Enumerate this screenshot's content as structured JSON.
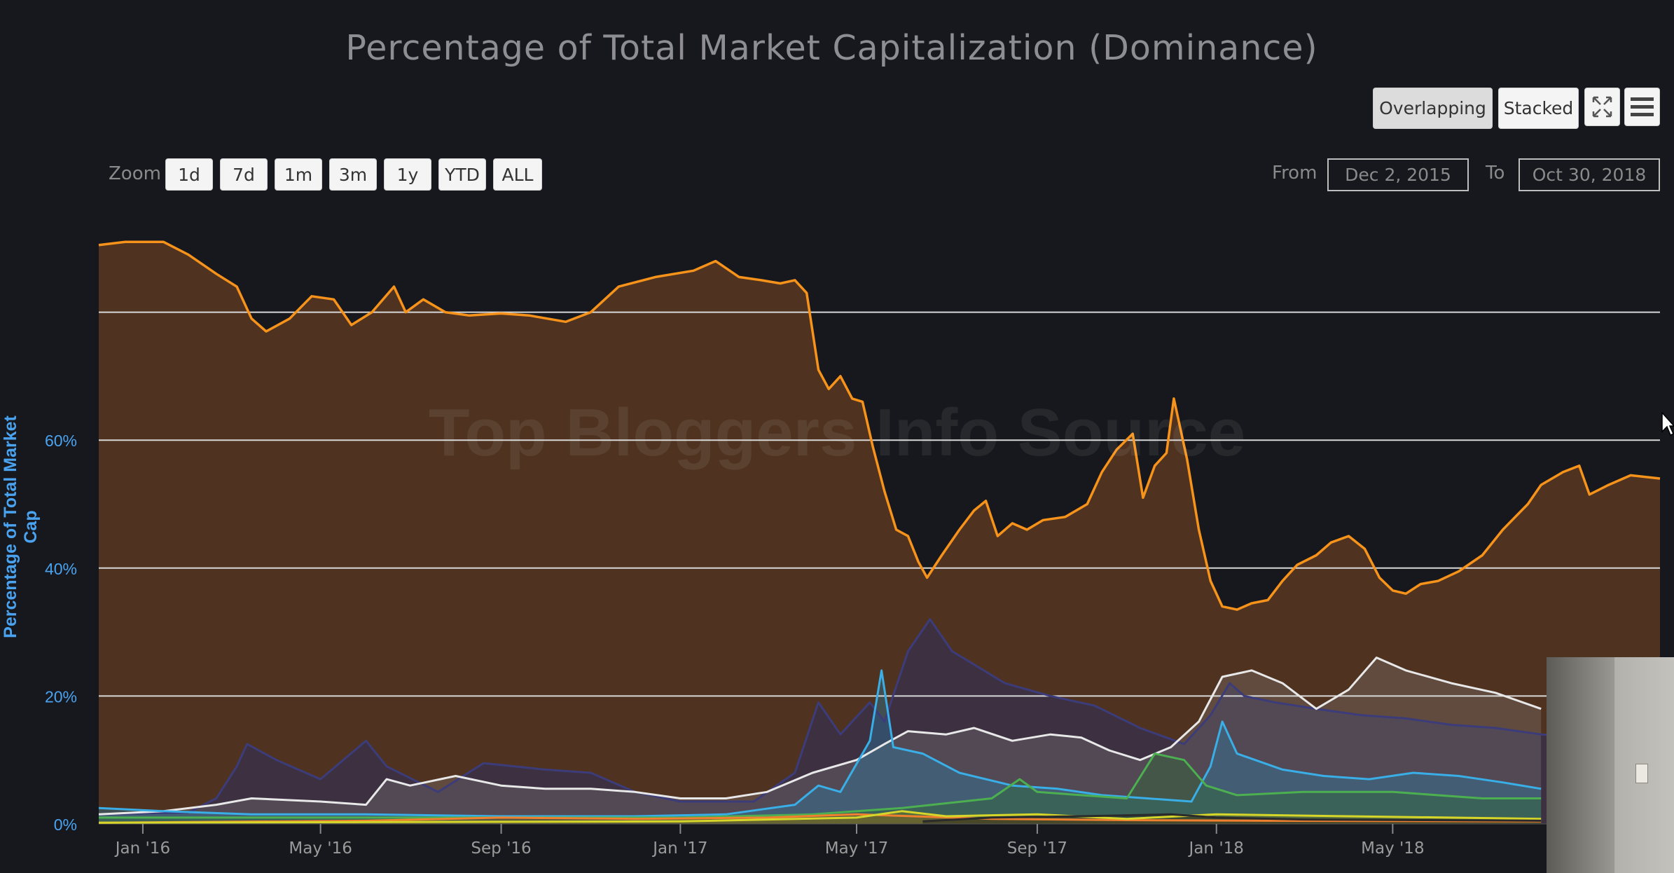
{
  "title": "Percentage of Total Market Capitalization (Dominance)",
  "view_toggle": {
    "overlapping_label": "Overlapping",
    "stacked_label": "Stacked",
    "selected": "Overlapping"
  },
  "toolbar_icons": [
    "fullscreen-icon",
    "menu-icon"
  ],
  "zoom": {
    "label": "Zoom",
    "buttons": [
      "1d",
      "7d",
      "1m",
      "3m",
      "1y",
      "YTD",
      "ALL"
    ]
  },
  "range": {
    "from_label": "From",
    "from_value": "Dec 2, 2015",
    "to_label": "To",
    "to_value": "Oct 30, 2018"
  },
  "watermark": "Top Bloggers Info Source",
  "colors": {
    "background": "#17181d",
    "bitcoin": "#f7931a",
    "ethereum": "#e8e8e8",
    "ripple": "#4a4a8c",
    "dash": "#3aaee6",
    "litecoin": "#4caf50",
    "other_yellow": "#d6d62a",
    "other_orange": "#f08030",
    "other_dark": "#2b2b2b",
    "y_axis_label": "#4aa3f0"
  },
  "chart_data": {
    "type": "area",
    "title": "Percentage of Total Market Capitalization (Dominance)",
    "ylabel": "Percentage of Total Market Cap",
    "xlabel": "",
    "ylim": [
      0,
      90
    ],
    "grid": true,
    "x_range": [
      "2015-12-02",
      "2018-10-30"
    ],
    "yticks": [
      "0%",
      "20%",
      "40%",
      "60%"
    ],
    "xticks": [
      {
        "label": "Jan '16",
        "date": "2016-01-01"
      },
      {
        "label": "May '16",
        "date": "2016-05-01"
      },
      {
        "label": "Sep '16",
        "date": "2016-09-01"
      },
      {
        "label": "Jan '17",
        "date": "2017-01-01"
      },
      {
        "label": "May '17",
        "date": "2017-05-01"
      },
      {
        "label": "Sep '17",
        "date": "2017-09-01"
      },
      {
        "label": "Jan '18",
        "date": "2018-01-01"
      },
      {
        "label": "May '18",
        "date": "2018-05-01"
      }
    ],
    "series": [
      {
        "key": "bitcoin",
        "color": "#f7931a",
        "fill": "#4f3320",
        "fill_opacity": 1,
        "points": [
          [
            "2015-12-02",
            90.5
          ],
          [
            "2015-12-20",
            91
          ],
          [
            "2016-01-15",
            91
          ],
          [
            "2016-02-01",
            89
          ],
          [
            "2016-02-20",
            86
          ],
          [
            "2016-03-05",
            84
          ],
          [
            "2016-03-15",
            79
          ],
          [
            "2016-03-25",
            77
          ],
          [
            "2016-04-10",
            79
          ],
          [
            "2016-04-25",
            82.5
          ],
          [
            "2016-05-10",
            82
          ],
          [
            "2016-05-22",
            78
          ],
          [
            "2016-06-05",
            80
          ],
          [
            "2016-06-20",
            84
          ],
          [
            "2016-06-28",
            80
          ],
          [
            "2016-07-10",
            82
          ],
          [
            "2016-07-25",
            80
          ],
          [
            "2016-08-10",
            79.5
          ],
          [
            "2016-09-01",
            79.8
          ],
          [
            "2016-09-20",
            79.5
          ],
          [
            "2016-10-15",
            78.5
          ],
          [
            "2016-11-01",
            80
          ],
          [
            "2016-11-20",
            84
          ],
          [
            "2016-12-15",
            85.5
          ],
          [
            "2017-01-10",
            86.5
          ],
          [
            "2017-01-25",
            88
          ],
          [
            "2017-02-10",
            85.5
          ],
          [
            "2017-02-25",
            85
          ],
          [
            "2017-03-10",
            84.5
          ],
          [
            "2017-03-20",
            85
          ],
          [
            "2017-03-28",
            83
          ],
          [
            "2017-04-05",
            71
          ],
          [
            "2017-04-12",
            68
          ],
          [
            "2017-04-20",
            70
          ],
          [
            "2017-04-28",
            66.5
          ],
          [
            "2017-05-05",
            66
          ],
          [
            "2017-05-12",
            59
          ],
          [
            "2017-05-20",
            52
          ],
          [
            "2017-05-28",
            46
          ],
          [
            "2017-06-05",
            45
          ],
          [
            "2017-06-12",
            41
          ],
          [
            "2017-06-18",
            38.5
          ],
          [
            "2017-06-28",
            42
          ],
          [
            "2017-07-10",
            46
          ],
          [
            "2017-07-20",
            49
          ],
          [
            "2017-07-28",
            50.5
          ],
          [
            "2017-08-05",
            45
          ],
          [
            "2017-08-15",
            47
          ],
          [
            "2017-08-25",
            46
          ],
          [
            "2017-09-05",
            47.5
          ],
          [
            "2017-09-20",
            48
          ],
          [
            "2017-10-05",
            50
          ],
          [
            "2017-10-15",
            55
          ],
          [
            "2017-10-25",
            58.5
          ],
          [
            "2017-11-05",
            61
          ],
          [
            "2017-11-12",
            51
          ],
          [
            "2017-11-20",
            56
          ],
          [
            "2017-11-28",
            58
          ],
          [
            "2017-12-03",
            66.5
          ],
          [
            "2017-12-12",
            57
          ],
          [
            "2017-12-20",
            46
          ],
          [
            "2017-12-28",
            38
          ],
          [
            "2018-01-05",
            34
          ],
          [
            "2018-01-15",
            33.5
          ],
          [
            "2018-01-25",
            34.5
          ],
          [
            "2018-02-05",
            35
          ],
          [
            "2018-02-15",
            38
          ],
          [
            "2018-02-25",
            40.5
          ],
          [
            "2018-03-10",
            42
          ],
          [
            "2018-03-20",
            44
          ],
          [
            "2018-04-01",
            45
          ],
          [
            "2018-04-12",
            43
          ],
          [
            "2018-04-22",
            38.5
          ],
          [
            "2018-05-01",
            36.5
          ],
          [
            "2018-05-10",
            36
          ],
          [
            "2018-05-20",
            37.5
          ],
          [
            "2018-06-01",
            38
          ],
          [
            "2018-06-15",
            39.5
          ],
          [
            "2018-07-01",
            42
          ],
          [
            "2018-07-15",
            46
          ],
          [
            "2018-08-01",
            50
          ],
          [
            "2018-08-10",
            53
          ],
          [
            "2018-08-25",
            55
          ],
          [
            "2018-09-05",
            56
          ],
          [
            "2018-09-12",
            51.5
          ],
          [
            "2018-09-25",
            53
          ],
          [
            "2018-10-10",
            54.5
          ],
          [
            "2018-10-30",
            54
          ]
        ]
      },
      {
        "key": "ripple",
        "color": "#3c3c7a",
        "fill": "#2e2e5c",
        "fill_opacity": 0.55,
        "points": [
          [
            "2015-12-02",
            1.5
          ],
          [
            "2016-02-01",
            1.8
          ],
          [
            "2016-02-20",
            4
          ],
          [
            "2016-03-05",
            9
          ],
          [
            "2016-03-12",
            12.5
          ],
          [
            "2016-04-01",
            10
          ],
          [
            "2016-05-01",
            7
          ],
          [
            "2016-06-01",
            13
          ],
          [
            "2016-06-15",
            9
          ],
          [
            "2016-07-20",
            5
          ],
          [
            "2016-08-20",
            9.5
          ],
          [
            "2016-10-01",
            8.5
          ],
          [
            "2016-11-01",
            8
          ],
          [
            "2016-12-01",
            5
          ],
          [
            "2017-01-01",
            3.5
          ],
          [
            "2017-02-20",
            3.5
          ],
          [
            "2017-03-20",
            8
          ],
          [
            "2017-04-05",
            19
          ],
          [
            "2017-04-20",
            14
          ],
          [
            "2017-05-10",
            19
          ],
          [
            "2017-05-20",
            16
          ],
          [
            "2017-06-05",
            27
          ],
          [
            "2017-06-20",
            32
          ],
          [
            "2017-07-05",
            27
          ],
          [
            "2017-08-10",
            22
          ],
          [
            "2017-09-10",
            20
          ],
          [
            "2017-10-10",
            18.5
          ],
          [
            "2017-11-10",
            15
          ],
          [
            "2017-12-10",
            12.5
          ],
          [
            "2017-12-28",
            17
          ],
          [
            "2018-01-10",
            22
          ],
          [
            "2018-01-20",
            20
          ],
          [
            "2018-02-10",
            19
          ],
          [
            "2018-03-10",
            18
          ],
          [
            "2018-04-10",
            17
          ],
          [
            "2018-05-10",
            16.5
          ],
          [
            "2018-06-10",
            15.5
          ],
          [
            "2018-07-10",
            15
          ],
          [
            "2018-08-10",
            14
          ],
          [
            "2018-09-10",
            13.5
          ]
        ]
      },
      {
        "key": "ethereum",
        "color": "#e8e8e8",
        "fill": "#8c8c8c",
        "fill_opacity": 0.28,
        "points": [
          [
            "2015-12-02",
            1.5
          ],
          [
            "2016-01-15",
            2
          ],
          [
            "2016-02-20",
            3
          ],
          [
            "2016-03-15",
            4
          ],
          [
            "2016-05-01",
            3.5
          ],
          [
            "2016-06-01",
            3
          ],
          [
            "2016-06-15",
            7
          ],
          [
            "2016-07-01",
            6
          ],
          [
            "2016-08-01",
            7.5
          ],
          [
            "2016-09-01",
            6
          ],
          [
            "2016-10-01",
            5.5
          ],
          [
            "2016-11-01",
            5.5
          ],
          [
            "2016-12-01",
            5
          ],
          [
            "2017-01-01",
            4
          ],
          [
            "2017-02-01",
            4
          ],
          [
            "2017-03-01",
            5
          ],
          [
            "2017-04-01",
            8
          ],
          [
            "2017-05-01",
            10
          ],
          [
            "2017-05-20",
            12.5
          ],
          [
            "2017-06-05",
            14.5
          ],
          [
            "2017-07-01",
            14
          ],
          [
            "2017-07-20",
            15
          ],
          [
            "2017-08-15",
            13
          ],
          [
            "2017-09-10",
            14
          ],
          [
            "2017-10-01",
            13.5
          ],
          [
            "2017-10-20",
            11.5
          ],
          [
            "2017-11-10",
            10
          ],
          [
            "2017-12-01",
            12
          ],
          [
            "2017-12-20",
            16
          ],
          [
            "2018-01-05",
            23
          ],
          [
            "2018-01-25",
            24
          ],
          [
            "2018-02-15",
            22
          ],
          [
            "2018-03-10",
            18
          ],
          [
            "2018-04-01",
            21
          ],
          [
            "2018-04-20",
            26
          ],
          [
            "2018-05-10",
            24
          ],
          [
            "2018-06-10",
            22
          ],
          [
            "2018-07-10",
            20.5
          ],
          [
            "2018-08-10",
            18
          ]
        ]
      },
      {
        "key": "dash",
        "color": "#3aaee6",
        "fill": "#2a7fa8",
        "fill_opacity": 0.38,
        "points": [
          [
            "2015-12-02",
            2.5
          ],
          [
            "2016-01-15",
            2
          ],
          [
            "2016-03-15",
            1.5
          ],
          [
            "2016-06-01",
            1.5
          ],
          [
            "2016-09-01",
            1.2
          ],
          [
            "2016-12-01",
            1.2
          ],
          [
            "2017-02-01",
            1.5
          ],
          [
            "2017-03-20",
            3
          ],
          [
            "2017-04-05",
            6
          ],
          [
            "2017-04-20",
            5
          ],
          [
            "2017-05-10",
            13
          ],
          [
            "2017-05-18",
            24
          ],
          [
            "2017-05-26",
            12
          ],
          [
            "2017-06-15",
            11
          ],
          [
            "2017-07-10",
            8
          ],
          [
            "2017-08-15",
            6
          ],
          [
            "2017-09-15",
            5.5
          ],
          [
            "2017-10-15",
            4.5
          ],
          [
            "2017-11-15",
            4
          ],
          [
            "2017-12-15",
            3.5
          ],
          [
            "2017-12-28",
            9
          ],
          [
            "2018-01-05",
            16
          ],
          [
            "2018-01-15",
            11
          ],
          [
            "2018-02-15",
            8.5
          ],
          [
            "2018-03-15",
            7.5
          ],
          [
            "2018-04-15",
            7
          ],
          [
            "2018-05-15",
            8
          ],
          [
            "2018-06-15",
            7.5
          ],
          [
            "2018-07-15",
            6.5
          ],
          [
            "2018-08-10",
            5.5
          ]
        ]
      },
      {
        "key": "litecoin",
        "color": "#4caf50",
        "fill": "#2f6b32",
        "fill_opacity": 0.4,
        "points": [
          [
            "2015-12-02",
            1
          ],
          [
            "2016-06-01",
            1
          ],
          [
            "2017-01-01",
            1
          ],
          [
            "2017-04-01",
            1.5
          ],
          [
            "2017-06-01",
            2.5
          ],
          [
            "2017-08-01",
            4
          ],
          [
            "2017-08-20",
            7
          ],
          [
            "2017-09-01",
            5
          ],
          [
            "2017-10-01",
            4.5
          ],
          [
            "2017-11-01",
            4
          ],
          [
            "2017-11-20",
            11
          ],
          [
            "2017-12-10",
            10
          ],
          [
            "2017-12-25",
            6
          ],
          [
            "2018-01-15",
            4.5
          ],
          [
            "2018-03-01",
            5
          ],
          [
            "2018-05-01",
            5
          ],
          [
            "2018-07-01",
            4
          ],
          [
            "2018-08-10",
            4
          ]
        ]
      },
      {
        "key": "other-orange",
        "color": "#f08030",
        "fill": "#8a4a1d",
        "fill_opacity": 0.4,
        "points": [
          [
            "2015-12-02",
            0.2
          ],
          [
            "2016-06-01",
            0.5
          ],
          [
            "2016-09-01",
            1
          ],
          [
            "2016-12-01",
            0.8
          ],
          [
            "2017-03-01",
            1
          ],
          [
            "2017-05-01",
            1.5
          ],
          [
            "2017-08-01",
            0.8
          ],
          [
            "2017-11-01",
            0.6
          ],
          [
            "2018-02-01",
            0.5
          ],
          [
            "2018-08-10",
            0.4
          ]
        ]
      },
      {
        "key": "other-yellow",
        "color": "#d6d62a",
        "fill": "#7a7a18",
        "fill_opacity": 0.4,
        "points": [
          [
            "2015-12-02",
            0.2
          ],
          [
            "2016-06-01",
            0.3
          ],
          [
            "2017-01-01",
            0.4
          ],
          [
            "2017-05-01",
            1
          ],
          [
            "2017-06-01",
            2
          ],
          [
            "2017-07-01",
            1.2
          ],
          [
            "2017-09-01",
            1.5
          ],
          [
            "2017-11-01",
            0.8
          ],
          [
            "2018-01-01",
            1.5
          ],
          [
            "2018-04-01",
            1.2
          ],
          [
            "2018-08-10",
            0.8
          ]
        ]
      },
      {
        "key": "other-dark",
        "color": "#2b2b2b",
        "fill": "#1b1b1b",
        "fill_opacity": 0.4,
        "points": [
          [
            "2017-06-15",
            0.4
          ],
          [
            "2017-08-01",
            1
          ],
          [
            "2017-10-01",
            1.2
          ],
          [
            "2017-12-01",
            1.5
          ],
          [
            "2018-01-01",
            1
          ],
          [
            "2018-03-01",
            0.7
          ],
          [
            "2018-08-10",
            0.5
          ]
        ]
      }
    ]
  }
}
